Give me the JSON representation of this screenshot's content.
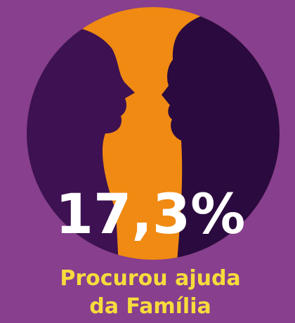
{
  "stat": {
    "value": "17,3%",
    "label_lines": [
      "Procurou ajuda",
      "da Família"
    ]
  }
}
